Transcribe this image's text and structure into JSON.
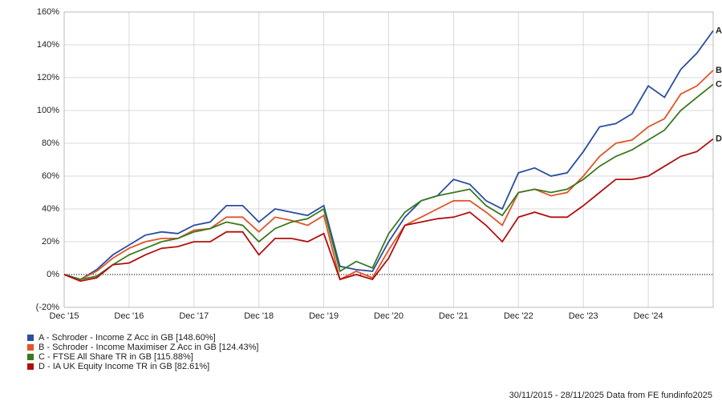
{
  "chart_data": {
    "type": "line",
    "categories": [
      "Dec '15",
      null,
      null,
      null,
      "Dec '16",
      null,
      null,
      null,
      "Dec '17",
      null,
      null,
      null,
      "Dec '18",
      null,
      null,
      null,
      "Dec '19",
      null,
      null,
      null,
      "Dec '20",
      null,
      null,
      null,
      "Dec '21",
      null,
      null,
      null,
      "Dec '22",
      null,
      null,
      null,
      "Dec '23",
      null,
      null,
      null,
      "Dec '24",
      null,
      null,
      null,
      null
    ],
    "series": [
      {
        "name": "A - Schroder - Income Z Acc in GB [148.60%]",
        "label": "A",
        "color": "#2a4ea0",
        "values": [
          0,
          -3,
          3,
          12,
          18,
          24,
          26,
          25,
          30,
          32,
          42,
          42,
          32,
          40,
          38,
          36,
          42,
          5,
          3,
          2,
          20,
          35,
          45,
          48,
          58,
          55,
          45,
          40,
          62,
          65,
          60,
          62,
          75,
          90,
          92,
          98,
          115,
          108,
          125,
          135,
          148.6
        ]
      },
      {
        "name": "B - Schroder - Income Maximiser Z Acc in GB [124.43%]",
        "label": "B",
        "color": "#e0552a",
        "values": [
          0,
          -3,
          2,
          10,
          16,
          20,
          22,
          22,
          27,
          28,
          35,
          35,
          26,
          35,
          33,
          30,
          36,
          -3,
          2,
          -2,
          15,
          30,
          35,
          40,
          45,
          45,
          38,
          30,
          50,
          52,
          48,
          50,
          60,
          72,
          80,
          82,
          90,
          95,
          110,
          115,
          124.43
        ]
      },
      {
        "name": "C - FTSE All Share TR in GB [115.88%]",
        "label": "C",
        "color": "#3a7a1e",
        "values": [
          0,
          -3,
          -1,
          6,
          12,
          16,
          20,
          22,
          26,
          28,
          32,
          30,
          20,
          28,
          32,
          34,
          40,
          2,
          8,
          4,
          25,
          38,
          45,
          48,
          50,
          52,
          42,
          36,
          50,
          52,
          50,
          52,
          58,
          66,
          72,
          76,
          82,
          88,
          100,
          108,
          115.88
        ]
      },
      {
        "name": "D - IA UK Equity Income TR in GB [82.61%]",
        "label": "D",
        "color": "#b01010",
        "values": [
          0,
          -4,
          -2,
          6,
          7,
          12,
          16,
          17,
          20,
          20,
          26,
          26,
          12,
          22,
          22,
          20,
          25,
          -3,
          0,
          -3,
          10,
          30,
          32,
          34,
          35,
          38,
          30,
          20,
          35,
          38,
          35,
          35,
          42,
          50,
          58,
          58,
          60,
          66,
          72,
          75,
          82.61
        ]
      }
    ],
    "ylim": [
      -20,
      160
    ],
    "yticks": [
      {
        "value": -20,
        "label": "(-20%"
      },
      {
        "value": 0,
        "label": "0%"
      },
      {
        "value": 20,
        "label": "20%"
      },
      {
        "value": 40,
        "label": "40%"
      },
      {
        "value": 60,
        "label": "60%"
      },
      {
        "value": 80,
        "label": "80%"
      },
      {
        "value": 100,
        "label": "100%"
      },
      {
        "value": 120,
        "label": "120%"
      },
      {
        "value": 140,
        "label": "140%"
      },
      {
        "value": 160,
        "label": "160%"
      }
    ],
    "grid": true,
    "footer": "30/11/2015 - 28/11/2025 Data from FE fundinfo2025"
  }
}
